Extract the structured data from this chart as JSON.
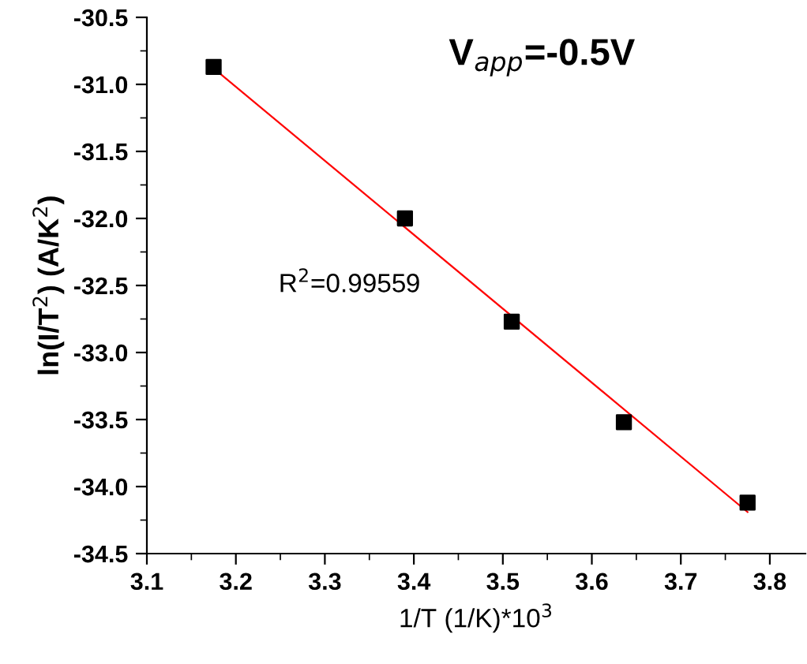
{
  "chart_data": {
    "type": "scatter",
    "title": "V$_{app}$=-0.5V",
    "xlabel": "1/T (1/K)*10$^{3}$",
    "ylabel": "ln(I/T$^{2}$) (A/K$^{2}$)",
    "annotations": [
      "R$^{2}$=0.99559"
    ],
    "series": [
      {
        "color": "#000000",
        "marker": "square",
        "x": [
          3.175,
          3.39,
          3.51,
          3.636,
          3.775
        ],
        "values": [
          -30.87,
          -32.0,
          -32.77,
          -33.52,
          -34.12
        ]
      },
      {
        "type": "line",
        "color": "#ff0000",
        "marker": "none",
        "line_style": "solid",
        "x": [
          3.175,
          3.775
        ],
        "values": [
          -30.88,
          -34.19
        ]
      }
    ],
    "xlim": [
      3.1,
      3.84
    ],
    "ylim": [
      -34.5,
      -30.5
    ],
    "xticks": [
      3.1,
      3.2,
      3.3,
      3.4,
      3.5,
      3.6,
      3.7,
      3.8
    ],
    "yticks": [
      -34.5,
      {
        "value": -34,
        "label": "-34.0"
      },
      -33.5,
      {
        "value": -33,
        "label": "-33.0"
      },
      -32.5,
      {
        "value": -32,
        "label": "-32.0"
      },
      -31.5,
      {
        "value": -31,
        "label": "-31.0"
      },
      -30.5
    ],
    "grid": false
  }
}
